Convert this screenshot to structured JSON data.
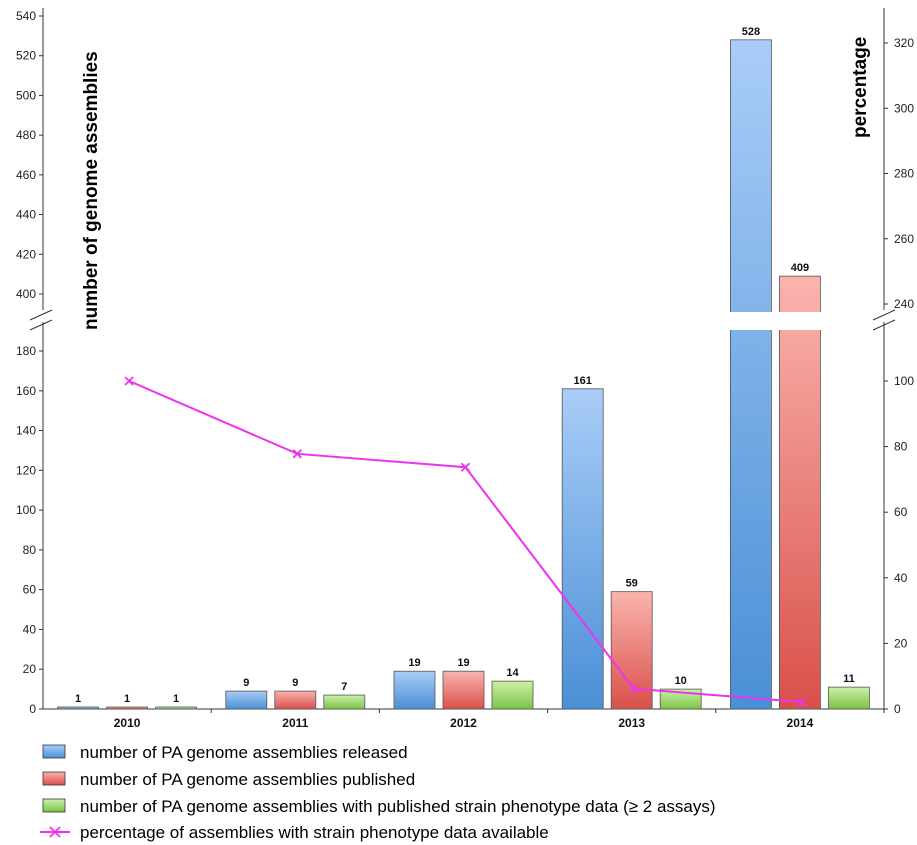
{
  "chart_data": {
    "type": "bar",
    "categories": [
      "2010",
      "2011",
      "2012",
      "2013",
      "2014"
    ],
    "series": [
      {
        "name": "number of PA genome assemblies released",
        "values": [
          1,
          9,
          19,
          161,
          528
        ],
        "color": "#5b9bd5"
      },
      {
        "name": "number of PA genome assemblies published",
        "values": [
          1,
          9,
          19,
          59,
          409
        ],
        "color": "#e05a50"
      },
      {
        "name": "number of PA genome assemblies with published strain phenotype data (≥ 2 assays)",
        "values": [
          1,
          7,
          14,
          10,
          11
        ],
        "color": "#8fd35a"
      },
      {
        "name": "percentage of assemblies with strain phenotype data available",
        "type": "line",
        "axis": "right",
        "values": [
          100,
          77.8,
          73.7,
          6.2,
          2.1
        ],
        "color": "#ee33ee"
      }
    ],
    "ylabel": "number of genome assemblies",
    "y2label": "percentage",
    "y_lower_ticks": [
      "0",
      "20",
      "40",
      "60",
      "80",
      "100",
      "120",
      "140",
      "160",
      "180"
    ],
    "y_upper_ticks": [
      "400",
      "420",
      "440",
      "460",
      "480",
      "500",
      "520",
      "540"
    ],
    "y2_lower_ticks": [
      "0",
      "20",
      "40",
      "60",
      "80",
      "100"
    ],
    "y2_upper_ticks": [
      "240",
      "260",
      "280",
      "300",
      "320"
    ],
    "ylim_lower": [
      0,
      180
    ],
    "ylim_upper": [
      390,
      540
    ],
    "y2lim_lower": [
      0,
      110
    ],
    "y2lim_upper": [
      230,
      330
    ],
    "axis_break": true,
    "legend_position": "bottom",
    "grid": false
  }
}
